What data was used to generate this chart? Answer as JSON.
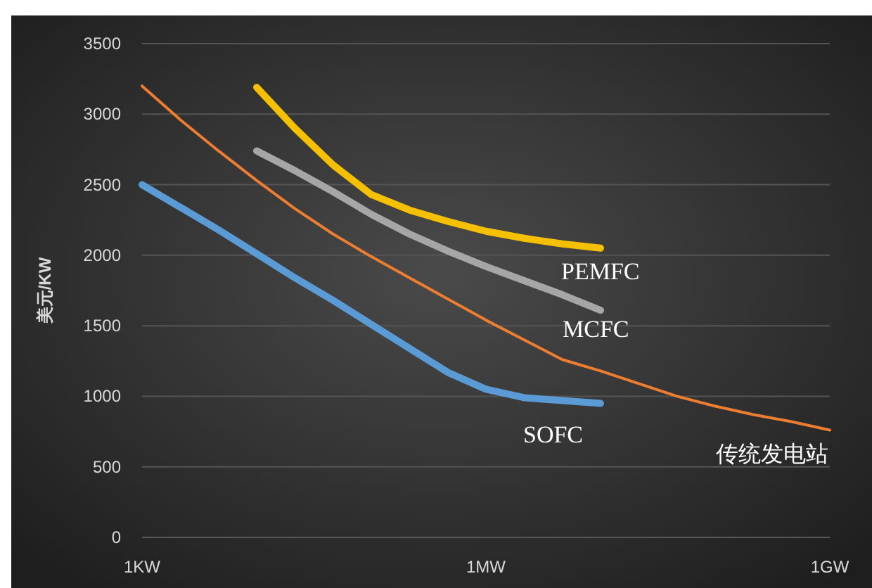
{
  "chart_data": {
    "type": "line",
    "ylabel": "美元/KW",
    "grid": "y",
    "legend": false,
    "marker": "none",
    "line_style": "solid",
    "categories": [
      "1KW",
      null,
      null,
      null,
      null,
      null,
      null,
      null,
      null,
      "1MW",
      null,
      null,
      null,
      null,
      null,
      null,
      null,
      null,
      "1GW"
    ],
    "ylim": [
      0,
      3500
    ],
    "yticks": [
      0,
      500,
      1000,
      1500,
      2000,
      2500,
      3000,
      3500
    ],
    "series": [
      {
        "name": "PEMFC",
        "color": "#f5c000",
        "values": [
          null,
          null,
          null,
          3190,
          2900,
          2640,
          2430,
          2320,
          2240,
          2170,
          2120,
          2080,
          2050,
          null,
          null,
          null,
          null,
          null,
          null
        ]
      },
      {
        "name": "MCFC",
        "color": "#a6a6a6",
        "values": [
          null,
          null,
          null,
          2740,
          2600,
          2450,
          2290,
          2150,
          2030,
          1920,
          1820,
          1720,
          1610,
          null,
          null,
          null,
          null,
          null,
          null
        ]
      },
      {
        "name": "SOFC",
        "color": "#5b9bd5",
        "values": [
          2500,
          2340,
          2180,
          2010,
          1840,
          1680,
          1510,
          1340,
          1170,
          1050,
          990,
          970,
          950,
          null,
          null,
          null,
          null,
          null,
          null
        ]
      },
      {
        "name": "传统发电站",
        "color": "#ed7d31",
        "values": [
          3200,
          2960,
          2740,
          2530,
          2330,
          2150,
          1990,
          1840,
          1690,
          1540,
          1400,
          1260,
          1180,
          1090,
          1000,
          930,
          870,
          820,
          760
        ]
      }
    ]
  }
}
